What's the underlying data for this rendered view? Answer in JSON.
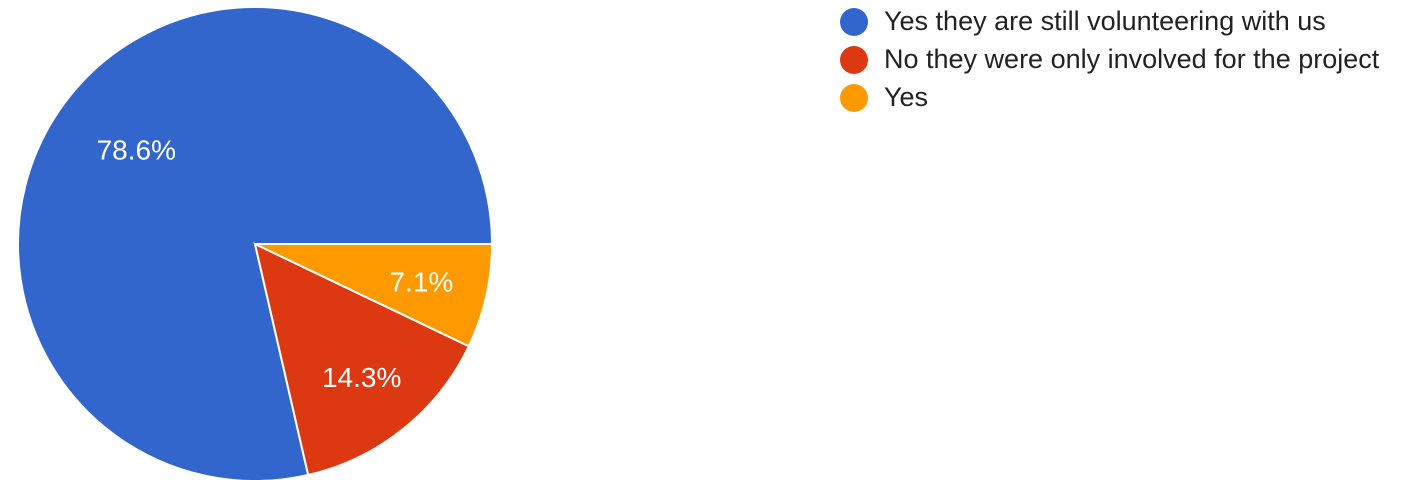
{
  "chart_data": {
    "type": "pie",
    "slices": [
      {
        "label": "Yes they are still volunteering with us",
        "value": 78.6,
        "display": "78.6%",
        "color": "#3366cc"
      },
      {
        "label": "No they were only involved for the project",
        "value": 14.3,
        "display": "14.3%",
        "color": "#dc3912"
      },
      {
        "label": "Yes",
        "value": 7.1,
        "display": "7.1%",
        "color": "#ff9900"
      }
    ],
    "legend_position": "right",
    "start": "right-horizontal",
    "direction": "counter-clockwise"
  }
}
